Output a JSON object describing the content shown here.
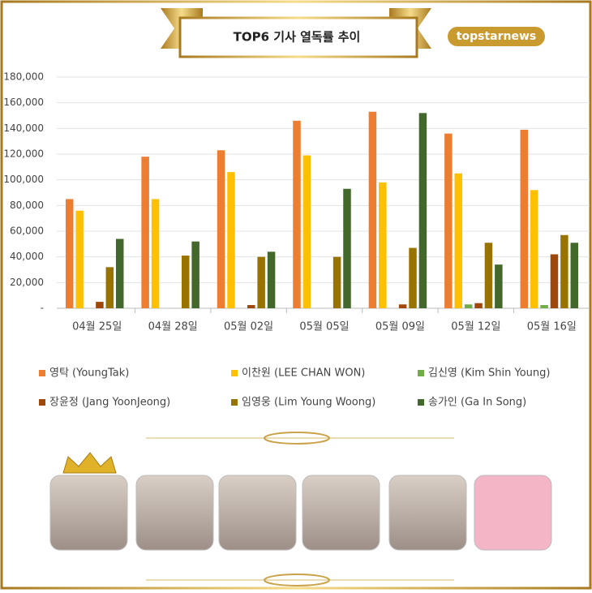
{
  "chart_data": {
    "type": "bar",
    "title": "TOP6 기사 열독률 추이",
    "source": "topstarnews",
    "categories": [
      "04월 25일",
      "04월 28일",
      "05월 02일",
      "05월 05일",
      "05월 09일",
      "05월 12일",
      "05월 16일"
    ],
    "series": [
      {
        "name": "영탁 (YoungTak)",
        "color": "#ed7d31",
        "values": [
          85000,
          118000,
          123000,
          146000,
          153000,
          136000,
          139000
        ]
      },
      {
        "name": "이찬원 (LEE CHAN WON)",
        "color": "#ffc000",
        "values": [
          76000,
          85000,
          106000,
          119000,
          98000,
          105000,
          92000
        ]
      },
      {
        "name": "김신영 (Kim Shin Young)",
        "color": "#70ad47",
        "values": [
          null,
          null,
          null,
          null,
          null,
          3000,
          2500
        ]
      },
      {
        "name": "장윤정 (Jang YoonJeong)",
        "color": "#9e480e",
        "values": [
          5000,
          null,
          2500,
          null,
          3000,
          4000,
          42000
        ]
      },
      {
        "name": "임영웅 (Lim Young Woong)",
        "color": "#997300",
        "values": [
          32000,
          41000,
          40000,
          40000,
          47000,
          51000,
          57000
        ]
      },
      {
        "name": "송가인 (Ga In Song)",
        "color": "#43682b",
        "values": [
          54000,
          52000,
          44000,
          93000,
          152000,
          34000,
          51000
        ]
      }
    ],
    "ylim": [
      0,
      180000
    ],
    "yticks": [
      {
        "value": 0,
        "label": "-"
      },
      {
        "value": 20000,
        "label": "20,000"
      },
      {
        "value": 40000,
        "label": "40,000"
      },
      {
        "value": 60000,
        "label": "60,000"
      },
      {
        "value": 80000,
        "label": "80,000"
      },
      {
        "value": 100000,
        "label": "100,000"
      },
      {
        "value": 120000,
        "label": "120,000"
      },
      {
        "value": 140000,
        "label": "140,000"
      },
      {
        "value": 160000,
        "label": "160,000"
      },
      {
        "value": 180000,
        "label": "180,000"
      }
    ],
    "grid": true
  }
}
